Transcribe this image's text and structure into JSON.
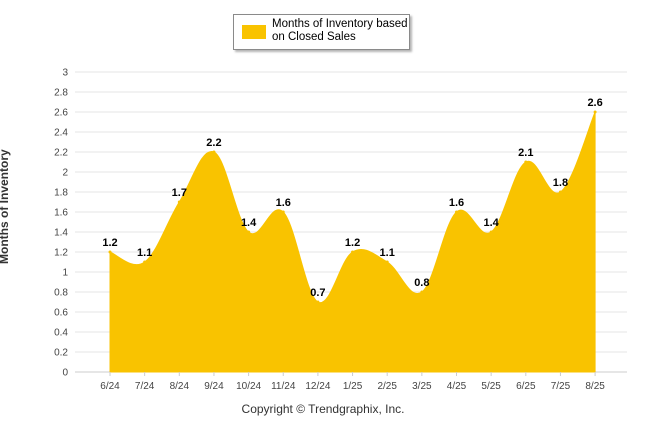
{
  "chart_data": {
    "type": "area",
    "categories": [
      "6/24",
      "7/24",
      "8/24",
      "9/24",
      "10/24",
      "11/24",
      "12/24",
      "1/25",
      "2/25",
      "3/25",
      "4/25",
      "5/25",
      "6/25",
      "7/25",
      "8/25"
    ],
    "series": [
      {
        "name": "Months of Inventory based on Closed Sales",
        "values": [
          1.2,
          1.1,
          1.7,
          2.2,
          1.4,
          1.6,
          0.7,
          1.2,
          1.1,
          0.8,
          1.6,
          1.4,
          2.1,
          1.8,
          2.6
        ]
      }
    ],
    "data_labels": [
      "1.2",
      "1.1",
      "1.7",
      "2.2",
      "1.4",
      "1.6",
      "0.7",
      "1.2",
      "1.1",
      "0.8",
      "1.6",
      "1.4",
      "2.1",
      "1.8",
      "2.6"
    ],
    "ylabel": "Months of Inventory",
    "xlabel": "",
    "ylim": [
      0,
      3
    ],
    "yticks": [
      "0",
      "0.2",
      "0.4",
      "0.6",
      "0.8",
      "1",
      "1.2",
      "1.4",
      "1.6",
      "1.8",
      "2",
      "2.2",
      "2.4",
      "2.6",
      "2.8",
      "3"
    ],
    "grid": true,
    "legend_position": "top-center",
    "colors": {
      "fill": "#F9C300",
      "grid": "#e6e6e6",
      "axis_text": "#444444"
    }
  },
  "legend": {
    "label": "Months of Inventory based on Closed Sales"
  },
  "footer": {
    "copyright": "Copyright © Trendgraphix, Inc."
  }
}
